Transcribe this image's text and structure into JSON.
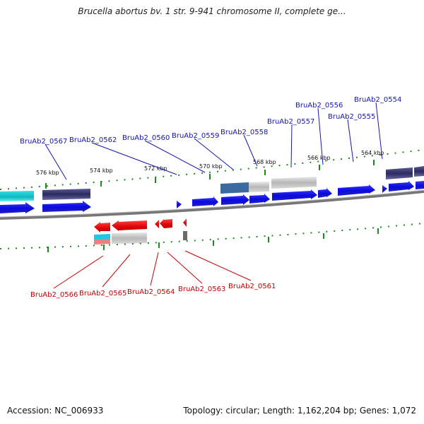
{
  "title": "Brucella abortus bv. 1 str. 9-941 chromosome II, complete ge...",
  "footer": {
    "accession": "Accession: NC_006933",
    "summary": "Topology: circular; Length: 1,162,204 bp; Genes: 1,072"
  },
  "ticks": [
    "576 kbp",
    "574 kbp",
    "572 kbp",
    "570 kbp",
    "568 kbp",
    "566 kbp",
    "564 kbp"
  ],
  "forward_genes": [
    "BruAb2_0567",
    "BruAb2_0562",
    "BruAb2_0560",
    "BruAb2_0559",
    "BruAb2_0558",
    "BruAb2_0557",
    "BruAb2_0556",
    "BruAb2_0555",
    "BruAb2_0554"
  ],
  "reverse_genes": [
    "BruAb2_0566",
    "BruAb2_0565",
    "BruAb2_0564",
    "BruAb2_0563",
    "BruAb2_0561"
  ],
  "colors": {
    "forward_cds": "#1010e8",
    "reverse_cds": "#ee1010",
    "forward_label": "#1515b0",
    "reverse_label": "#c40000",
    "tick": "#1f8a1f",
    "backbone": "#777777"
  }
}
